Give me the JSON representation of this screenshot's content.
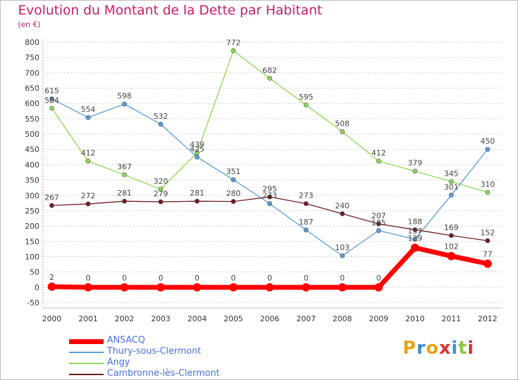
{
  "title": "Evolution du Montant de la Dette par Habitant",
  "subtitle": "(en €)",
  "logo_text": "Proxiti",
  "chart_data": {
    "type": "line",
    "title": "Evolution du Montant de la Dette par Habitant",
    "subtitle": "(en €)",
    "xlabel": "",
    "ylabel": "",
    "x": [
      2000,
      2001,
      2002,
      2003,
      2004,
      2005,
      2006,
      2007,
      2008,
      2009,
      2010,
      2011,
      2012
    ],
    "ylim": [
      -50,
      800
    ],
    "yticks": [
      -50,
      0,
      50,
      100,
      150,
      200,
      250,
      300,
      350,
      400,
      450,
      500,
      550,
      600,
      650,
      700,
      750,
      800
    ],
    "grid": "horizontal",
    "legend_position": "bottom",
    "series": [
      {
        "name": "ANSACQ",
        "color": "#ff0000",
        "values": [
          2,
          0,
          0,
          0,
          0,
          0,
          0,
          0,
          0,
          0,
          129,
          102,
          77
        ],
        "labels": [
          "2",
          "0",
          "0",
          "0",
          "0",
          "0",
          "0",
          "0",
          "0",
          "0",
          "129",
          "102",
          "77"
        ]
      },
      {
        "name": "Thury-sous-Clermont",
        "color": "#5a9bd4",
        "values": [
          615,
          554,
          598,
          532,
          425,
          351,
          273,
          187,
          103,
          185,
          157,
          301,
          450
        ],
        "labels": [
          "615",
          "554",
          "598",
          "532",
          "425",
          "351",
          "273",
          "187",
          "103",
          "185",
          "157",
          "301",
          "450"
        ]
      },
      {
        "name": "Angy",
        "color": "#8ed656",
        "values": [
          584,
          412,
          367,
          320,
          439,
          772,
          682,
          595,
          508,
          412,
          379,
          345,
          310
        ],
        "labels": [
          "584",
          "412",
          "367",
          "320",
          "439",
          "772",
          "682",
          "595",
          "508",
          "412",
          "379",
          "345",
          "310"
        ]
      },
      {
        "name": "Cambronne-lès-Clermont",
        "color": "#6b1d22",
        "values": [
          267,
          272,
          281,
          279,
          281,
          280,
          295,
          273,
          240,
          207,
          188,
          169,
          152
        ],
        "labels": [
          "267",
          "272",
          "281",
          "279",
          "281",
          "280",
          "295",
          "273",
          "240",
          "207",
          "188",
          "169",
          "152"
        ]
      }
    ]
  }
}
